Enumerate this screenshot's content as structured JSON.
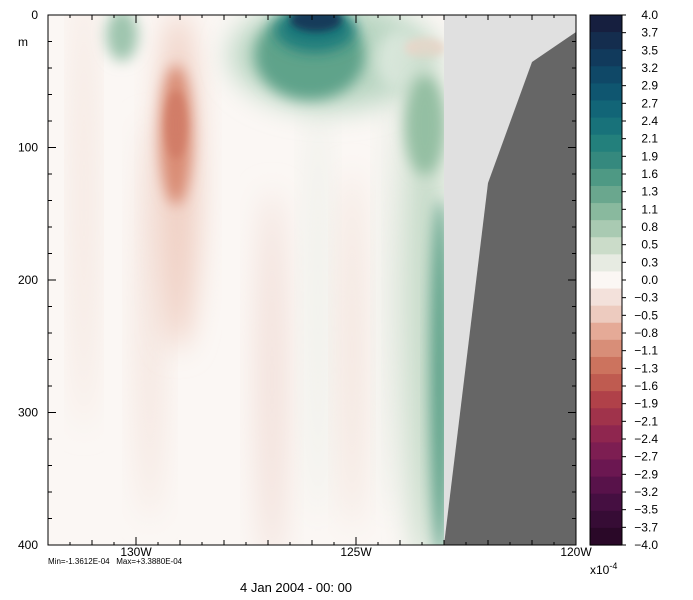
{
  "chart_data": {
    "type": "heatmap",
    "y_axis": {
      "unit": "m",
      "ylim": [
        0,
        400
      ],
      "reversed": true,
      "tick_labels": [
        "0",
        "100",
        "200",
        "300",
        "400"
      ],
      "tick_values": [
        0,
        100,
        200,
        300,
        400
      ]
    },
    "x_axis": {
      "xlim": [
        -132,
        -120
      ],
      "tick_labels": [
        "130W",
        "125W",
        "120W"
      ],
      "tick_values": [
        -130,
        -125,
        -120
      ]
    },
    "colorbar": {
      "levels": [
        "4.0",
        "3.7",
        "3.5",
        "3.2",
        "2.9",
        "2.7",
        "2.4",
        "2.1",
        "1.9",
        "1.6",
        "1.3",
        "1.1",
        "0.8",
        "0.5",
        "0.3",
        "0.0",
        "-0.3",
        "-0.5",
        "-0.8",
        "-1.1",
        "-1.3",
        "-1.6",
        "-1.9",
        "-2.1",
        "-2.4",
        "-2.7",
        "-2.9",
        "-3.2",
        "-3.5",
        "-3.7",
        "-4.0"
      ],
      "colors": [
        "#161f3f",
        "#142d4e",
        "#113a5c",
        "#0f4867",
        "#0f5670",
        "#126577",
        "#18727a",
        "#23807c",
        "#35897e",
        "#4e9984",
        "#6aa78e",
        "#89b99e",
        "#a9cab2",
        "#cbdcc9",
        "#e7ebe2",
        "#fbf7f4",
        "#f3e1db",
        "#edcbbf",
        "#e5aa97",
        "#d88e78",
        "#cc735e",
        "#bf5b50",
        "#b04149",
        "#a0334b",
        "#8f264f",
        "#7d1e52",
        "#6b1751",
        "#58124a",
        "#450f41",
        "#360c35",
        "#2a0828"
      ],
      "exponent_label": "x10",
      "exponent_power": "-4"
    },
    "stats": "Min=-1.3612E-04   Max=+3.3880E-04",
    "min": -0.00013612,
    "max": 0.0003388,
    "land_mask_color": "#666666",
    "missing_data_color": "#e0e0e0",
    "features": [
      {
        "kind": "positive_max",
        "lon": -125.7,
        "depth_range": [
          0,
          20
        ],
        "value": 3.4
      },
      {
        "kind": "positive",
        "lon": -126.5,
        "depth_range": [
          0,
          80
        ],
        "value": 1.3
      },
      {
        "kind": "positive",
        "lon": -130.6,
        "depth_range": [
          0,
          35
        ],
        "value": 0.8
      },
      {
        "kind": "positive",
        "lon": -123.4,
        "depth_range": [
          60,
          400
        ],
        "value": 1.0
      },
      {
        "kind": "negative_min",
        "lon": -129.0,
        "depth_range": [
          60,
          220
        ],
        "value": -1.36
      }
    ],
    "land_boundary": [
      [
        -122.0,
        130
      ],
      [
        -121.0,
        35
      ],
      [
        -120.0,
        13
      ]
    ]
  },
  "footer": {
    "date": "4 Jan 2004 - 00: 00"
  }
}
